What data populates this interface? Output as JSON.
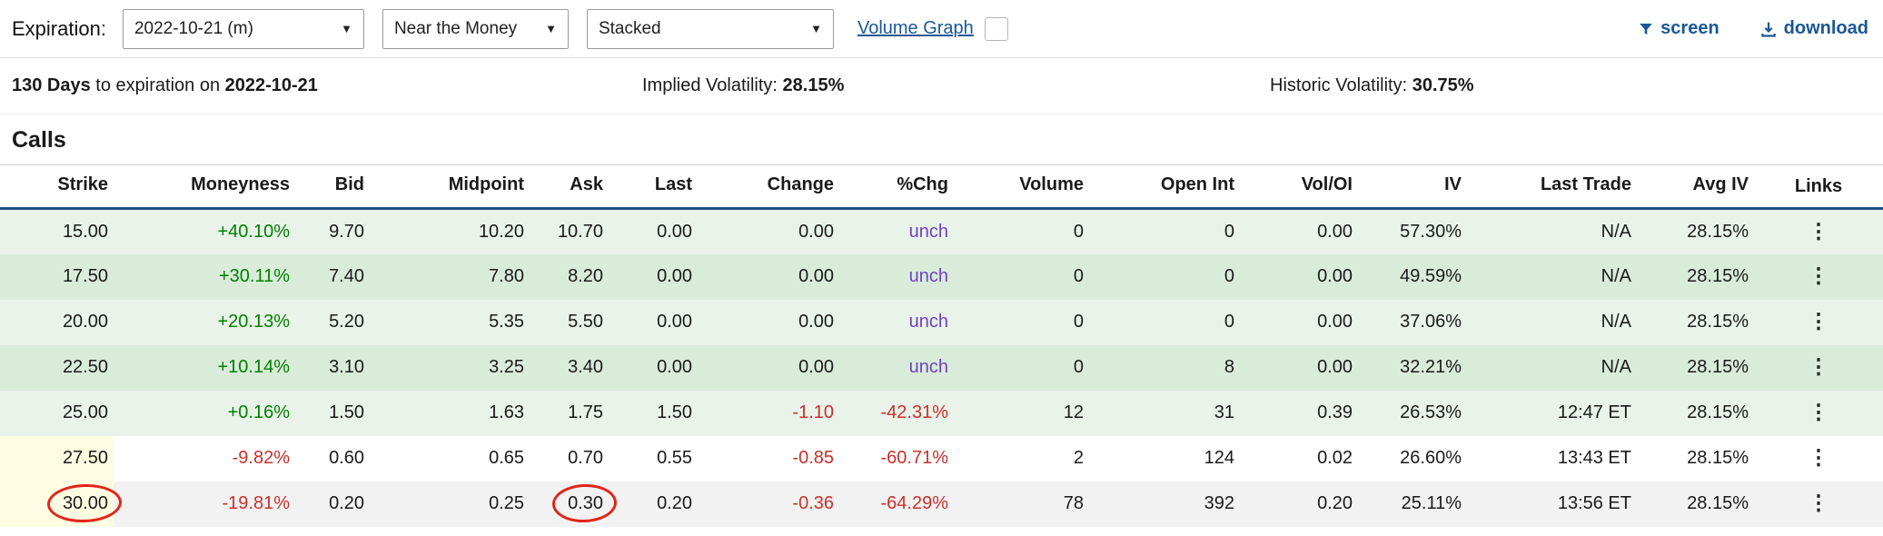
{
  "toolbar": {
    "expiration_label": "Expiration:",
    "expiration_select": "2022-10-21 (m)",
    "moneyness_select": "Near the Money",
    "view_select": "Stacked",
    "volume_graph_label": "Volume Graph",
    "volume_graph_checked": false,
    "screen_label": "screen",
    "download_label": "download"
  },
  "summary": {
    "days_bold": "130 Days",
    "days_rest": " to expiration on ",
    "date_bold": "2022-10-21",
    "iv_label": "Implied Volatility: ",
    "iv_value": "28.15%",
    "hv_label": "Historic Volatility: ",
    "hv_value": "30.75%"
  },
  "calls": {
    "title": "Calls",
    "columns": [
      "Strike",
      "Moneyness",
      "Bid",
      "Midpoint",
      "Ask",
      "Last",
      "Change",
      "%Chg",
      "Volume",
      "Open Int",
      "Vol/OI",
      "IV",
      "Last Trade",
      "Avg IV",
      "Links"
    ],
    "links_icon": "⋮",
    "rows": [
      {
        "cells": [
          "15.00",
          "+40.10%",
          "9.70",
          "10.20",
          "10.70",
          "0.00",
          "0.00",
          "unch",
          "0",
          "0",
          "0.00",
          "57.30%",
          "N/A",
          "28.15%"
        ],
        "bg": "itm-a"
      },
      {
        "cells": [
          "17.50",
          "+30.11%",
          "7.40",
          "7.80",
          "8.20",
          "0.00",
          "0.00",
          "unch",
          "0",
          "0",
          "0.00",
          "49.59%",
          "N/A",
          "28.15%"
        ],
        "bg": "itm-b"
      },
      {
        "cells": [
          "20.00",
          "+20.13%",
          "5.20",
          "5.35",
          "5.50",
          "0.00",
          "0.00",
          "unch",
          "0",
          "0",
          "0.00",
          "37.06%",
          "N/A",
          "28.15%"
        ],
        "bg": "itm-a"
      },
      {
        "cells": [
          "22.50",
          "+10.14%",
          "3.10",
          "3.25",
          "3.40",
          "0.00",
          "0.00",
          "unch",
          "0",
          "8",
          "0.00",
          "32.21%",
          "N/A",
          "28.15%"
        ],
        "bg": "itm-b"
      },
      {
        "cells": [
          "25.00",
          "+0.16%",
          "1.50",
          "1.63",
          "1.75",
          "1.50",
          "-1.10",
          "-42.31%",
          "12",
          "31",
          "0.39",
          "26.53%",
          "12:47 ET",
          "28.15%"
        ],
        "bg": "itm-a"
      },
      {
        "cells": [
          "27.50",
          "-9.82%",
          "0.60",
          "0.65",
          "0.70",
          "0.55",
          "-0.85",
          "-60.71%",
          "2",
          "124",
          "0.02",
          "26.60%",
          "13:43 ET",
          "28.15%"
        ],
        "bg": "otm-a",
        "strike_highlight": true
      },
      {
        "cells": [
          "30.00",
          "-19.81%",
          "0.20",
          "0.25",
          "0.30",
          "0.20",
          "-0.36",
          "-64.29%",
          "78",
          "392",
          "0.20",
          "25.11%",
          "13:56 ET",
          "28.15%"
        ],
        "bg": "otm-b",
        "strike_highlight": true,
        "circled": [
          0,
          4
        ]
      }
    ]
  },
  "colors": {
    "green": "#008000",
    "red": "#c9302c",
    "purple": "#6f42c1",
    "link_blue": "#1a5795",
    "navy_border": "#1c4e80",
    "itm_light": "#e9f3e9",
    "itm_dark": "#d9ecd9",
    "strike_yellow": "#fffde1",
    "annotation_red": "#e1251b"
  }
}
